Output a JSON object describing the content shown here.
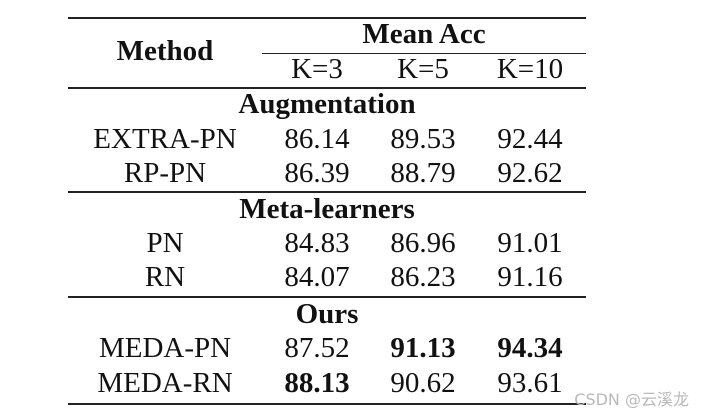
{
  "table": {
    "method_header": "Method",
    "group_header": "Mean Acc",
    "k_headers": [
      "K=3",
      "K=5",
      "K=10"
    ],
    "sections": [
      {
        "title": "Augmentation",
        "rows": [
          {
            "method": "EXTRA-PN",
            "values": [
              "86.14",
              "89.53",
              "92.44"
            ]
          },
          {
            "method": "RP-PN",
            "values": [
              "86.39",
              "88.79",
              "92.62"
            ]
          }
        ]
      },
      {
        "title": "Meta-learners",
        "rows": [
          {
            "method": "PN",
            "values": [
              "84.83",
              "86.96",
              "91.01"
            ]
          },
          {
            "method": "RN",
            "values": [
              "84.07",
              "86.23",
              "91.16"
            ]
          }
        ]
      },
      {
        "title": "Ours",
        "rows": [
          {
            "method": "MEDA-PN",
            "values": [
              "87.52",
              "91.13",
              "94.34"
            ]
          },
          {
            "method": "MEDA-RN",
            "values": [
              "88.13",
              "90.62",
              "93.61"
            ]
          }
        ]
      }
    ]
  },
  "watermark": "CSDN @云溪龙"
}
